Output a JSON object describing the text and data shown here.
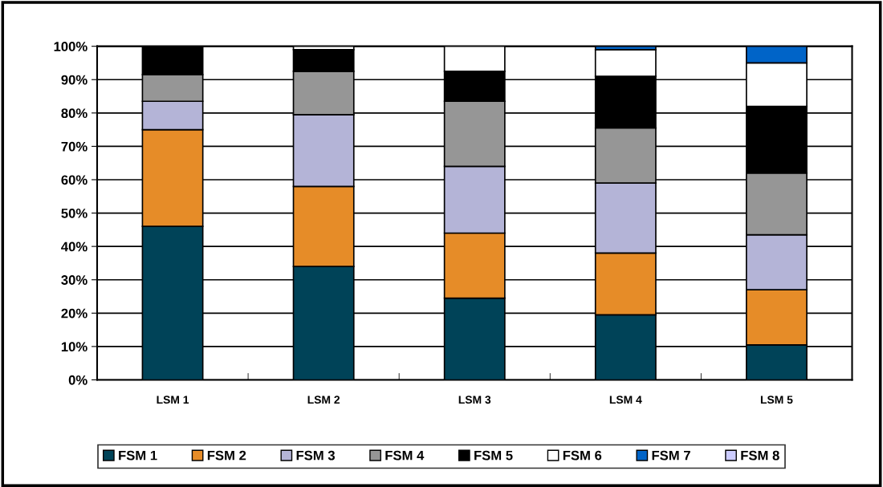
{
  "chart_data": {
    "type": "bar",
    "stacked": true,
    "categories": [
      "LSM 1",
      "LSM 2",
      "LSM 3",
      "LSM 4",
      "LSM 5"
    ],
    "series": [
      {
        "name": "FSM 1",
        "color": "#004358",
        "values": [
          46,
          34,
          24.5,
          19.5,
          10.5
        ]
      },
      {
        "name": "FSM 2",
        "color": "#e68c28",
        "values": [
          29,
          24,
          19.5,
          18.5,
          16.5
        ]
      },
      {
        "name": "FSM 3",
        "color": "#b4b4d7",
        "values": [
          8.5,
          21.5,
          20,
          21,
          16.5
        ]
      },
      {
        "name": "FSM 4",
        "color": "#969696",
        "values": [
          8,
          13,
          19.5,
          16.5,
          18.5
        ]
      },
      {
        "name": "FSM 5",
        "color": "#000000",
        "values": [
          8.5,
          6.5,
          9,
          15.5,
          20
        ]
      },
      {
        "name": "FSM 6",
        "color": "#ffffff",
        "values": [
          0,
          1,
          7.5,
          8,
          13
        ]
      },
      {
        "name": "FSM 7",
        "color": "#0064c8",
        "values": [
          0,
          0,
          0,
          1,
          5
        ]
      },
      {
        "name": "FSM 8",
        "color": "#ccccff",
        "values": [
          0,
          0,
          0,
          0,
          0
        ]
      }
    ],
    "ylim": [
      0,
      100
    ],
    "yticks": [
      {
        "value": 0,
        "label": "0%"
      },
      {
        "value": 10,
        "label": "10%"
      },
      {
        "value": 20,
        "label": "20%"
      },
      {
        "value": 30,
        "label": "30%"
      },
      {
        "value": 40,
        "label": "40%"
      },
      {
        "value": 50,
        "label": "50%"
      },
      {
        "value": 60,
        "label": "60%"
      },
      {
        "value": 70,
        "label": "70%"
      },
      {
        "value": 80,
        "label": "80%"
      },
      {
        "value": 90,
        "label": "90%"
      },
      {
        "value": 100,
        "label": "100%"
      }
    ],
    "grid": "y",
    "legend": "bottom"
  }
}
